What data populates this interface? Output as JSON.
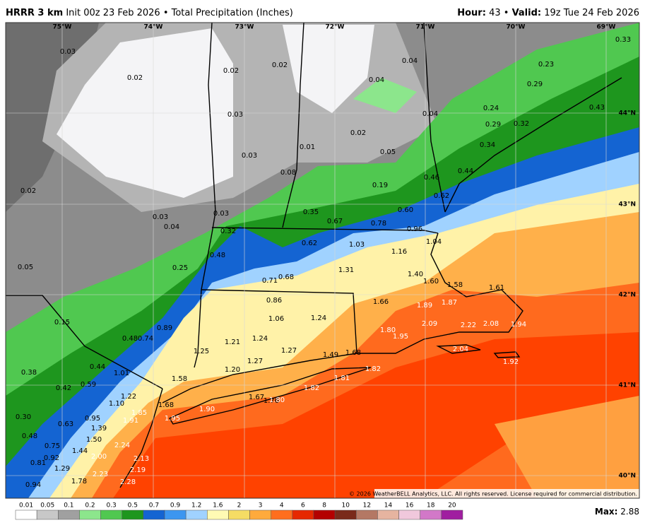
{
  "header": {
    "model": "HRRR 3 km",
    "init": "Init 00z 23 Feb 2026",
    "separator": "•",
    "product": "Total Precipitation (Inches)",
    "hour_label": "Hour:",
    "hour": "43",
    "valid_label": "Valid:",
    "valid": "19z Tue 24 Feb 2026"
  },
  "longitudes": [
    "75°W",
    "74°W",
    "73°W",
    "72°W",
    "71°W",
    "70°W",
    "69°W"
  ],
  "latitudes": [
    "44°N",
    "43°N",
    "42°N",
    "41°N",
    "40°N"
  ],
  "points": [
    "0.03",
    "0.02",
    "0.02",
    "0.02",
    "0.04",
    "0.33",
    "0.23",
    "0.04",
    "0.29",
    "0.03",
    "0.04",
    "0.24",
    "0.02",
    "0.29",
    "0.32",
    "0.43",
    "0.02",
    "0.03",
    "0.01",
    "0.05",
    "0.34",
    "0.08",
    "0.19",
    "0.46",
    "0.44",
    "0.03",
    "0.04",
    "0.03",
    "0.35",
    "0.60",
    "0.62",
    "0.67",
    "0.78",
    "0.96",
    "0.32",
    "0.05",
    "0.25",
    "0.48",
    "0.62",
    "1.03",
    "1.16",
    "1.04",
    "0.71",
    "0.68",
    "1.31",
    "1.40",
    "1.60",
    "1.58",
    "1.61",
    "0.86",
    "1.66",
    "1.89",
    "1.87",
    "1.06",
    "1.24",
    "0.15",
    "0.89",
    "2.09",
    "2.22",
    "2.08",
    "1.94",
    "0.48",
    "0.74",
    "1.21",
    "1.24",
    "1.80",
    "1.95",
    "1.25",
    "1.27",
    "1.49",
    "1.68",
    "2.04",
    "0.44",
    "1.01",
    "1.27",
    "1.20",
    "1.82",
    "1.92",
    "0.38",
    "1.58",
    "1.81",
    "0.59",
    "0.42",
    "1.82",
    "1.22",
    "1.67",
    "1.76",
    "1.80",
    "1.10",
    "1.68",
    "1.90",
    "1.85",
    "1.95",
    "1.91",
    "0.30",
    "0.95",
    "1.39",
    "0.63",
    "0.48",
    "1.50",
    "0.75",
    "2.24",
    "1.44",
    "0.92",
    "2.00",
    "2.13",
    "0.81",
    "1.29",
    "2.19",
    "2.23",
    "0.94",
    "1.78",
    "2.28"
  ],
  "copyright": "© 2026 WeatherBELL Analytics, LLC. All rights reserved. License required for commercial distribution.",
  "scale": {
    "labels": [
      "0.01",
      "0.05",
      "0.1",
      "0.2",
      "0.3",
      "0.5",
      "0.7",
      "0.9",
      "1.2",
      "1.6",
      "2",
      "3",
      "4",
      "6",
      "8",
      "10",
      "12",
      "14",
      "16",
      "18",
      "20"
    ],
    "colors": [
      "#ffffff",
      "#c8c8c8",
      "#a0a0a0",
      "#8ce68c",
      "#50c850",
      "#1e961e",
      "#1464d2",
      "#3c96f0",
      "#a0d2ff",
      "#fffab4",
      "#f5dc64",
      "#ffaa3c",
      "#ff6e1e",
      "#e62800",
      "#b40000",
      "#7a2a1a",
      "#b47864",
      "#e6b4a0",
      "#f0c8dc",
      "#d278c8",
      "#a01ea0"
    ]
  },
  "max_label": "Max:",
  "max": "2.88"
}
